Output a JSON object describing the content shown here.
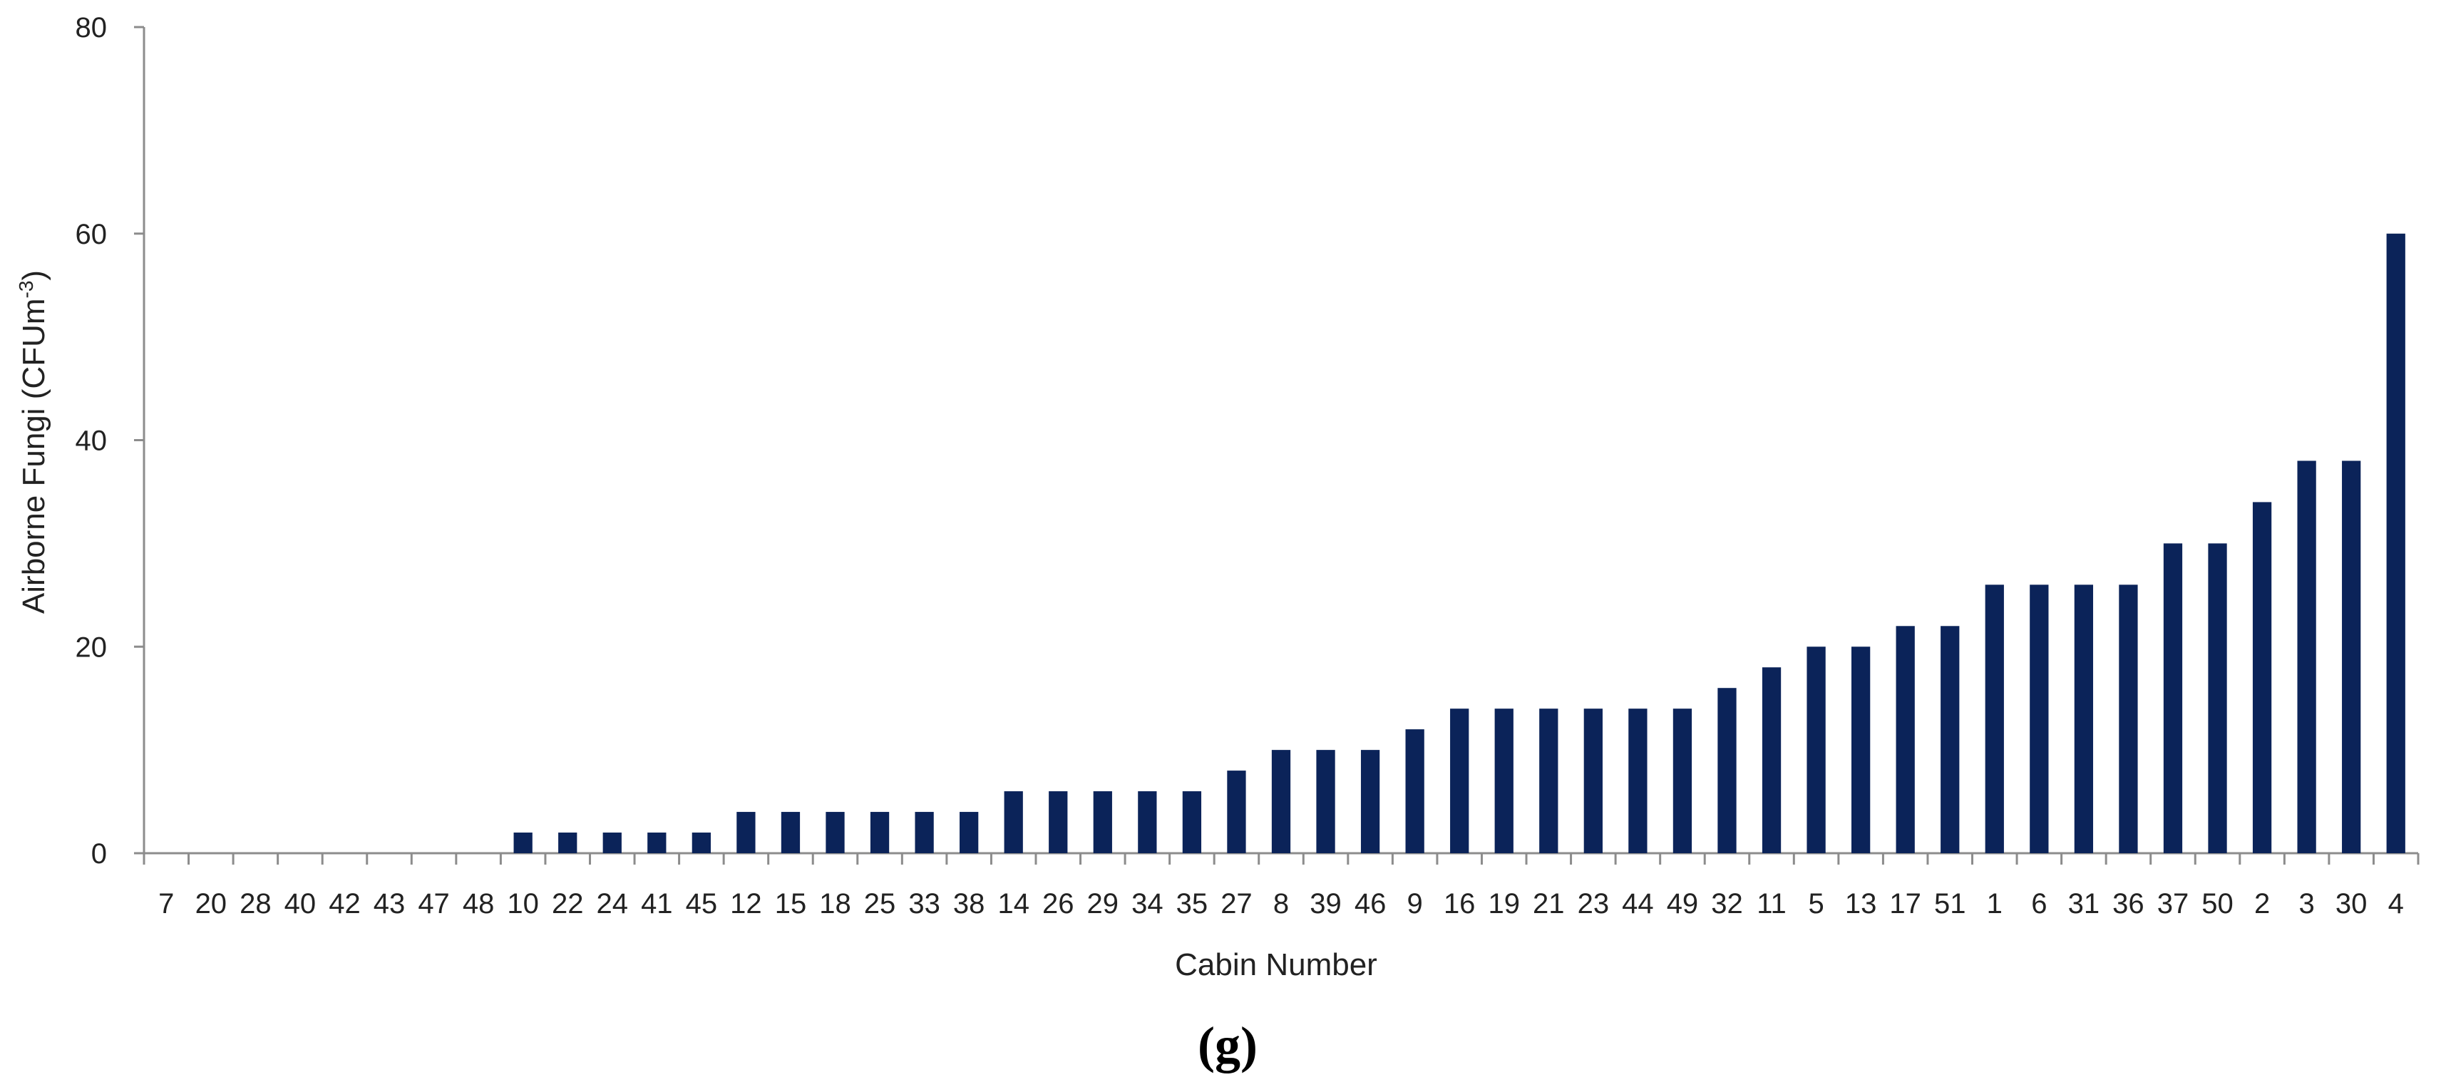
{
  "chart_data": {
    "type": "bar",
    "xlabel": "Cabin Number",
    "ylabel": "Airborne Fungi (CFUm",
    "ylabel_superscript": "-3",
    "ylabel_suffix": ")",
    "panel_label": "(g)",
    "ylim": [
      0,
      80
    ],
    "yticks": [
      0,
      20,
      40,
      60,
      80
    ],
    "grid": false,
    "bar_color": "#0b2359",
    "categories": [
      "7",
      "20",
      "28",
      "40",
      "42",
      "43",
      "47",
      "48",
      "10",
      "22",
      "24",
      "41",
      "45",
      "12",
      "15",
      "18",
      "25",
      "33",
      "38",
      "14",
      "26",
      "29",
      "34",
      "35",
      "27",
      "8",
      "39",
      "46",
      "9",
      "16",
      "19",
      "21",
      "23",
      "44",
      "49",
      "32",
      "11",
      "5",
      "13",
      "17",
      "51",
      "1",
      "6",
      "31",
      "36",
      "37",
      "50",
      "2",
      "3",
      "30",
      "4"
    ],
    "values": [
      0,
      0,
      0,
      0,
      0,
      0,
      0,
      0,
      2,
      2,
      2,
      2,
      2,
      4,
      4,
      4,
      4,
      4,
      4,
      6,
      6,
      6,
      6,
      6,
      8,
      10,
      10,
      10,
      12,
      14,
      14,
      14,
      14,
      14,
      14,
      16,
      18,
      20,
      20,
      22,
      22,
      26,
      26,
      26,
      26,
      30,
      30,
      34,
      38,
      38,
      60
    ]
  }
}
